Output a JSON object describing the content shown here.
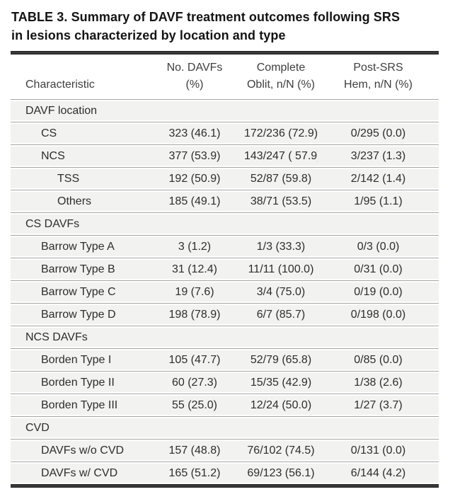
{
  "title_lines": [
    "TABLE 3. Summary of DAVF treatment outcomes following SRS",
    "in lesions characterized by location and type"
  ],
  "table": {
    "columns": {
      "characteristic": "Characteristic",
      "col2": {
        "line1": "No. DAVFs",
        "line2": "(%)"
      },
      "col3": {
        "line1": "Complete",
        "line2": "Oblit, n/N (%)"
      },
      "col4": {
        "line1": "Post-SRS",
        "line2": "Hem, n/N (%)"
      }
    },
    "rows": [
      {
        "type": "section",
        "indent": 0,
        "label": "DAVF location",
        "values": [
          "",
          "",
          ""
        ]
      },
      {
        "type": "item",
        "indent": 1,
        "label": "CS",
        "values": [
          "323 (46.1)",
          "172/236 (72.9)",
          "0/295 (0.0)"
        ]
      },
      {
        "type": "item",
        "indent": 1,
        "label": "NCS",
        "values": [
          "377 (53.9)",
          "143/247 ( 57.9)",
          "3/237 (1.3)"
        ]
      },
      {
        "type": "item",
        "indent": 2,
        "label": "TSS",
        "values": [
          "192 (50.9)",
          "52/87 (59.8)",
          "2/142 (1.4)"
        ]
      },
      {
        "type": "item",
        "indent": 2,
        "label": "Others",
        "values": [
          "185 (49.1)",
          "38/71 (53.5)",
          "1/95 (1.1)"
        ]
      },
      {
        "type": "section",
        "indent": 0,
        "label": "CS DAVFs",
        "values": [
          "",
          "",
          ""
        ]
      },
      {
        "type": "item",
        "indent": 1,
        "label": "Barrow Type A",
        "values": [
          "3 (1.2)",
          "1/3 (33.3)",
          "0/3 (0.0)"
        ]
      },
      {
        "type": "item",
        "indent": 1,
        "label": "Barrow Type B",
        "values": [
          "31 (12.4)",
          "11/11 (100.0)",
          "0/31 (0.0)"
        ]
      },
      {
        "type": "item",
        "indent": 1,
        "label": "Barrow Type C",
        "values": [
          "19 (7.6)",
          "3/4 (75.0)",
          "0/19 (0.0)"
        ]
      },
      {
        "type": "item",
        "indent": 1,
        "label": "Barrow Type D",
        "values": [
          "198 (78.9)",
          "6/7 (85.7)",
          "0/198 (0.0)"
        ]
      },
      {
        "type": "section",
        "indent": 0,
        "label": "NCS DAVFs",
        "values": [
          "",
          "",
          ""
        ]
      },
      {
        "type": "item",
        "indent": 1,
        "label": "Borden Type I",
        "values": [
          "105 (47.7)",
          "52/79 (65.8)",
          "0/85 (0.0)"
        ]
      },
      {
        "type": "item",
        "indent": 1,
        "label": "Borden Type II",
        "values": [
          "60 (27.3)",
          "15/35 (42.9)",
          "1/38 (2.6)"
        ]
      },
      {
        "type": "item",
        "indent": 1,
        "label": "Borden Type III",
        "values": [
          "55 (25.0)",
          "12/24 (50.0)",
          "1/27 (3.7)"
        ]
      },
      {
        "type": "section",
        "indent": 0,
        "label": "CVD",
        "values": [
          "",
          "",
          ""
        ]
      },
      {
        "type": "item",
        "indent": 1,
        "label": "DAVFs w/o CVD",
        "values": [
          "157 (48.8)",
          "76/102 (74.5)",
          "0/131 (0.0)"
        ]
      },
      {
        "type": "item",
        "indent": 1,
        "label": "DAVFs w/ CVD",
        "values": [
          "165 (51.2)",
          "69/123 (56.1)",
          "6/144 (4.2)"
        ]
      }
    ]
  },
  "colors": {
    "row_background": "#f2f2f0",
    "separator_line": "#a6a6a6",
    "thick_rule": "#181818",
    "text": "#2d2d2d"
  }
}
